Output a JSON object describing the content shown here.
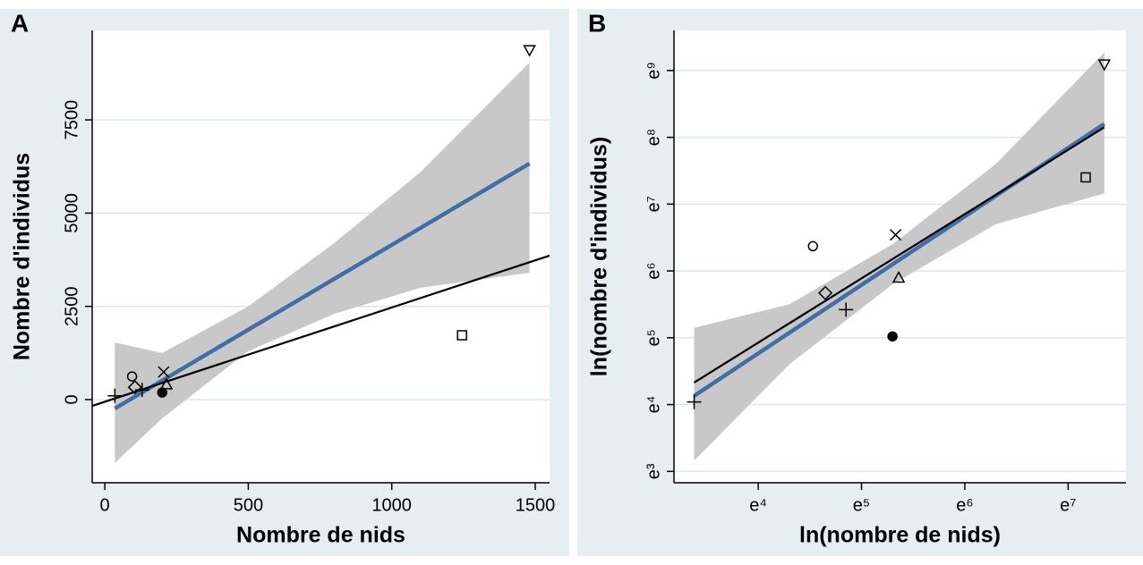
{
  "chart_data": [
    {
      "type": "scatter",
      "panel_label": "A",
      "x_label": "Nombre de nids",
      "y_label": "Nombre d'individus",
      "xlim": [
        -44,
        1550
      ],
      "ylim": [
        -2230,
        9900
      ],
      "xticks": [
        0,
        500,
        1000,
        1500
      ],
      "yticks": [
        0,
        2500,
        5000,
        7500
      ],
      "grid": true,
      "points": {
        "color": "#000000",
        "markers": [
          "plus",
          "circle",
          "diamond",
          "plus",
          "cross",
          "filled-circle",
          "triangle",
          "square",
          "triangle-down"
        ],
        "x": [
          35,
          95,
          105,
          130,
          205,
          200,
          215,
          1245,
          1480
        ],
        "values": [
          100,
          620,
          330,
          260,
          740,
          190,
          410,
          1725,
          9370
        ]
      },
      "band": {
        "color": "#c8c8c8",
        "x": [
          35,
          200,
          500,
          800,
          1100,
          1480
        ],
        "lower": [
          -1700,
          -500,
          1300,
          2300,
          3000,
          3400
        ],
        "upper": [
          1530,
          1250,
          2500,
          4200,
          6100,
          9040
        ]
      },
      "fit_lines": [
        {
          "color": "#3f6fa6",
          "x": [
            35,
            1480
          ],
          "values": [
            -240,
            6330
          ]
        },
        {
          "color": "#000000",
          "x": [
            -44,
            1550
          ],
          "values": [
            -170,
            3860
          ]
        }
      ]
    },
    {
      "type": "scatter",
      "panel_label": "B",
      "x_label": "ln(nombre de nids)",
      "y_label": "ln(nombre d'individus)",
      "xlim": [
        3.185,
        7.56
      ],
      "ylim": [
        2.83,
        9.6
      ],
      "xticks": [
        {
          "value": 4,
          "label": "e⁴"
        },
        {
          "value": 5,
          "label": "e⁵"
        },
        {
          "value": 6,
          "label": "e⁶"
        },
        {
          "value": 7,
          "label": "e⁷"
        }
      ],
      "yticks": [
        {
          "value": 3,
          "label": "e³"
        },
        {
          "value": 4,
          "label": "e⁴"
        },
        {
          "value": 5,
          "label": "e⁵"
        },
        {
          "value": 6,
          "label": "e⁶"
        },
        {
          "value": 7,
          "label": "e⁷"
        },
        {
          "value": 8,
          "label": "e⁸"
        },
        {
          "value": 9,
          "label": "e⁹"
        }
      ],
      "grid": true,
      "points": {
        "color": "#000000",
        "markers": [
          "plus",
          "circle",
          "diamond",
          "plus",
          "cross",
          "filled-circle",
          "triangle",
          "square",
          "triangle-down"
        ],
        "x": [
          3.38,
          4.53,
          4.65,
          4.85,
          5.33,
          5.3,
          5.36,
          7.17,
          7.35
        ],
        "values": [
          4.04,
          6.37,
          5.67,
          5.42,
          6.54,
          5.02,
          5.9,
          7.4,
          9.09
        ]
      },
      "band": {
        "color": "#c8c8c8",
        "x": [
          3.38,
          4.3,
          5.3,
          6.3,
          7.35
        ],
        "lower": [
          3.16,
          4.6,
          5.8,
          6.7,
          7.16
        ],
        "upper": [
          5.15,
          5.5,
          6.4,
          7.6,
          9.27
        ]
      },
      "fit_lines": [
        {
          "color": "#3f6fa6",
          "x": [
            3.38,
            7.35
          ],
          "values": [
            4.13,
            8.2
          ]
        },
        {
          "color": "#000000",
          "x": [
            3.38,
            7.35
          ],
          "values": [
            4.33,
            8.15
          ]
        }
      ]
    }
  ]
}
